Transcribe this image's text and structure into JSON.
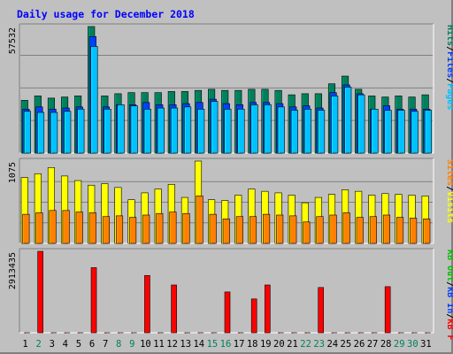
{
  "chart_data": {
    "type": "bar",
    "title": "Daily usage for December 2018",
    "categories": [
      "1",
      "2",
      "3",
      "4",
      "5",
      "6",
      "7",
      "8",
      "9",
      "10",
      "11",
      "12",
      "13",
      "14",
      "15",
      "16",
      "17",
      "18",
      "19",
      "20",
      "21",
      "22",
      "23",
      "24",
      "25",
      "26",
      "27",
      "28",
      "29",
      "30",
      "31"
    ],
    "weekend_days": [
      "2",
      "8",
      "9",
      "15",
      "16",
      "22",
      "23",
      "29",
      "30"
    ],
    "panels": [
      {
        "name": "hits",
        "max_label": "57532",
        "ymax": 57532,
        "legend": [
          {
            "text": "Pages",
            "color": "#00c0ff"
          },
          {
            "text": "Files",
            "color": "#0040ff"
          },
          {
            "text": "Hits",
            "color": "#00805c"
          }
        ],
        "series": [
          {
            "name": "Hits",
            "color": "#00805c",
            "values": [
              24000,
              26000,
              25000,
              25500,
              26000,
              57532,
              26000,
              27000,
              27500,
              27500,
              27500,
              28000,
              28000,
              28500,
              29000,
              28500,
              28500,
              29000,
              29000,
              28500,
              26500,
              27000,
              27000,
              31500,
              35000,
              29000,
              26000,
              25500,
              26000,
              25500,
              26500
            ]
          },
          {
            "name": "Files",
            "color": "#0040ff",
            "values": [
              20000,
              21000,
              20000,
              20500,
              21000,
              53000,
              21000,
              22000,
              22000,
              23000,
              22000,
              22000,
              22500,
              23000,
              24500,
              22500,
              22000,
              23000,
              23000,
              22500,
              21000,
              21500,
              20500,
              27500,
              31000,
              27000,
              20000,
              21500,
              20000,
              20000,
              20000
            ]
          },
          {
            "name": "Pages",
            "color": "#00c0ff",
            "values": [
              19000,
              18500,
              18500,
              19000,
              20000,
              48500,
              20000,
              22000,
              21500,
              20000,
              20500,
              20500,
              21000,
              20000,
              23500,
              20000,
              20000,
              22000,
              22000,
              21000,
              19500,
              20000,
              19500,
              26000,
              30000,
              26500,
              20000,
              19500,
              19500,
              19000,
              19500
            ]
          }
        ]
      },
      {
        "name": "visits",
        "max_label": "1075",
        "ymax": 1075,
        "legend": [
          {
            "text": "Visits",
            "color": "#ffff00"
          },
          {
            "text": "Sites",
            "color": "#ff8000"
          }
        ],
        "series": [
          {
            "name": "Visits",
            "color": "#ffff00",
            "values": [
              860,
              910,
              990,
              880,
              820,
              760,
              780,
              730,
              570,
              660,
              710,
              770,
              600,
              1075,
              570,
              560,
              630,
              710,
              680,
              660,
              630,
              530,
              600,
              640,
              700,
              680,
              630,
              650,
              640,
              630,
              620
            ]
          },
          {
            "name": "Sites",
            "color": "#ff8000",
            "values": [
              380,
              400,
              430,
              430,
              410,
              400,
              350,
              360,
              340,
              370,
              390,
              410,
              390,
              620,
              380,
              320,
              350,
              350,
              380,
              370,
              360,
              280,
              350,
              370,
              400,
              340,
              350,
              370,
              340,
              330,
              320
            ]
          }
        ]
      },
      {
        "name": "kbytes",
        "max_label": "2913435",
        "ymax": 2913435,
        "legend": [
          {
            "text": "KB F",
            "color": "#ff0000"
          },
          {
            "text": "KB In",
            "color": "#0040ff"
          },
          {
            "text": "KB Out",
            "color": "#00c000"
          }
        ],
        "series": [
          {
            "name": "KB F",
            "color": "#ff0000",
            "values": [
              740,
              2913435,
              910,
              700,
              930,
              2330000,
              520,
              400,
              560,
              2050000,
              700,
              1710000,
              660,
              660,
              720,
              1460000,
              960,
              1210000,
              1710000,
              680,
              680,
              980,
              1620000,
              500,
              540,
              500,
              800,
              1650000,
              480,
              480,
              540
            ]
          }
        ]
      }
    ]
  }
}
